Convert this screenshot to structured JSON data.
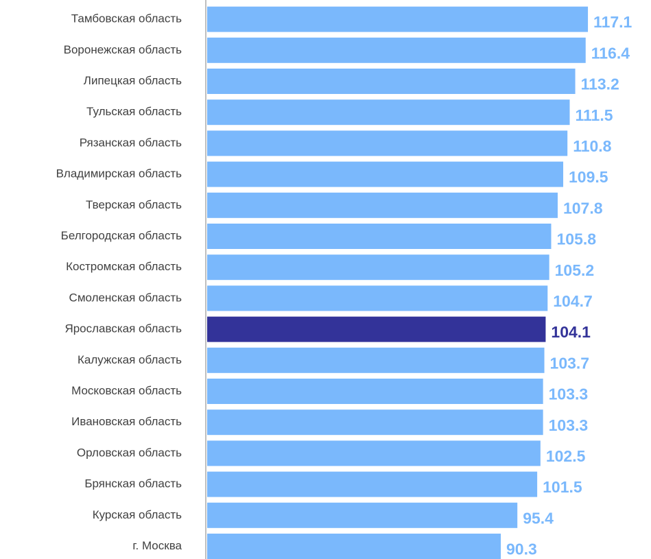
{
  "chart_data": {
    "type": "hbar",
    "categories": [
      "Тамбовская область",
      "Воронежская область",
      "Липецкая область",
      "Тульская область",
      "Рязанская область",
      "Владимирская область",
      "Тверская область",
      "Белгородская область",
      "Костромская область",
      "Смоленская область",
      "Ярославская область",
      "Калужская область",
      "Московская область",
      "Ивановская область",
      "Орловская область",
      "Брянская область",
      "Курская область",
      "г. Москва"
    ],
    "values": [
      117.1,
      116.4,
      113.2,
      111.5,
      110.8,
      109.5,
      107.8,
      105.8,
      105.2,
      104.7,
      104.1,
      103.7,
      103.3,
      103.3,
      102.5,
      101.5,
      95.4,
      90.3
    ],
    "colors": [
      "#7ab8fc",
      "#7ab8fc",
      "#7ab8fc",
      "#7ab8fc",
      "#7ab8fc",
      "#7ab8fc",
      "#7ab8fc",
      "#7ab8fc",
      "#7ab8fc",
      "#7ab8fc",
      "#333399",
      "#7ab8fc",
      "#7ab8fc",
      "#7ab8fc",
      "#7ab8fc",
      "#7ab8fc",
      "#7ab8fc",
      "#7ab8fc"
    ],
    "xlim": [
      0,
      135
    ]
  }
}
